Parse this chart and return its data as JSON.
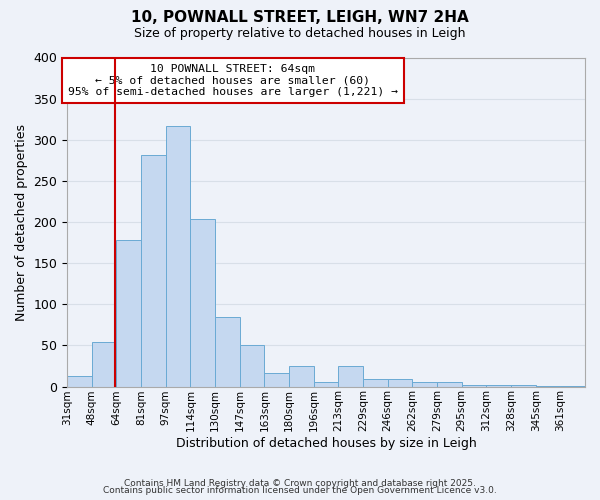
{
  "title": "10, POWNALL STREET, LEIGH, WN7 2HA",
  "subtitle": "Size of property relative to detached houses in Leigh",
  "xlabel": "Distribution of detached houses by size in Leigh",
  "ylabel": "Number of detached properties",
  "categories": [
    "31sqm",
    "48sqm",
    "64sqm",
    "81sqm",
    "97sqm",
    "114sqm",
    "130sqm",
    "147sqm",
    "163sqm",
    "180sqm",
    "196sqm",
    "213sqm",
    "229sqm",
    "246sqm",
    "262sqm",
    "279sqm",
    "295sqm",
    "312sqm",
    "328sqm",
    "345sqm",
    "361sqm"
  ],
  "values": [
    13,
    54,
    178,
    282,
    317,
    204,
    84,
    51,
    16,
    25,
    5,
    25,
    9,
    9,
    5,
    5,
    2,
    2,
    2,
    1,
    1
  ],
  "bar_color": "#c5d8f0",
  "bar_edge_color": "#6aaad4",
  "background_color": "#eef2f9",
  "grid_color": "#d8dfe8",
  "vline_color": "#cc0000",
  "annotation_title": "10 POWNALL STREET: 64sqm",
  "annotation_line1": "← 5% of detached houses are smaller (60)",
  "annotation_line2": "95% of semi-detached houses are larger (1,221) →",
  "annotation_box_color": "#ffffff",
  "annotation_box_edgecolor": "#cc0000",
  "ylim": [
    0,
    400
  ],
  "yticks": [
    0,
    50,
    100,
    150,
    200,
    250,
    300,
    350,
    400
  ],
  "bin_width": 17,
  "footer1": "Contains HM Land Registry data © Crown copyright and database right 2025.",
  "footer2": "Contains public sector information licensed under the Open Government Licence v3.0."
}
